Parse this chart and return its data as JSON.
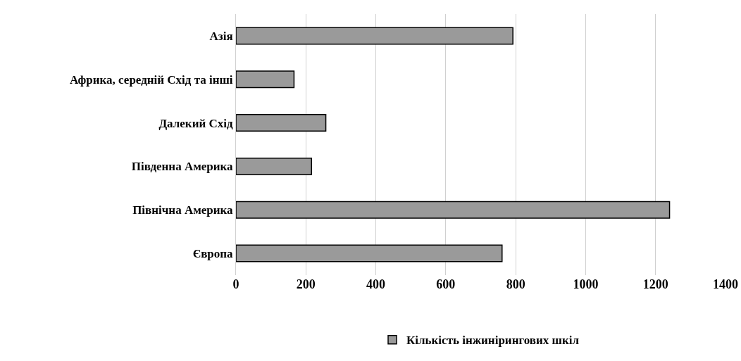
{
  "chart_data": {
    "type": "bar",
    "orientation": "horizontal",
    "categories": [
      "Азія",
      "Африка, середній Схід та інші",
      "Далекий Схід",
      "Південна Америка",
      "Північна Америка",
      "Європа"
    ],
    "series": [
      {
        "name": "Кількість інжинірингових шкіл",
        "color": "#9a9a9a",
        "values": [
          792,
          166,
          257,
          216,
          1240,
          761
        ]
      }
    ],
    "xlim": [
      0,
      1400
    ],
    "xticks": [
      0,
      200,
      400,
      600,
      800,
      1000,
      1200,
      1400
    ],
    "grid": "x",
    "legend": "bottom"
  }
}
